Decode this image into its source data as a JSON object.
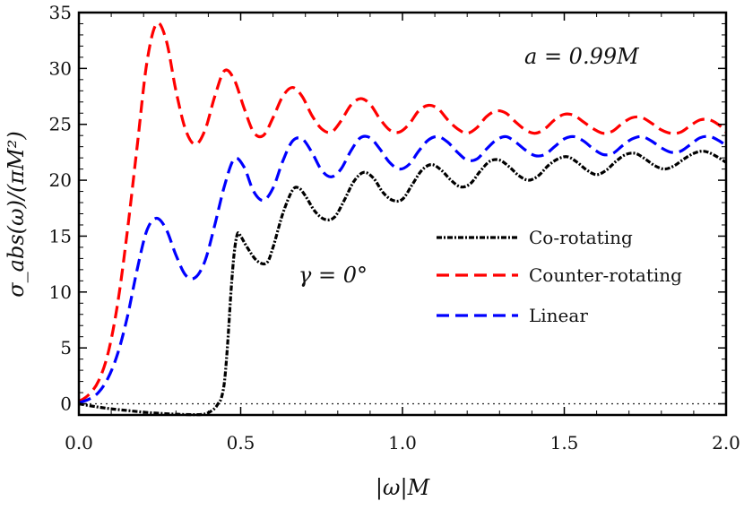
{
  "chart_data": {
    "type": "line",
    "xlabel": "|ω|M",
    "ylabel": "σ_abs(ω)/(πM²)",
    "xlim": [
      0,
      2.0
    ],
    "ylim": [
      -1,
      35
    ],
    "xticks": [
      "0.0",
      "0.5",
      "1.0",
      "1.5",
      "2.0"
    ],
    "yticks": [
      "0",
      "5",
      "10",
      "15",
      "20",
      "25",
      "30",
      "35"
    ],
    "annotations": [
      "a = 0.99M",
      "γ = 0°"
    ],
    "legend_position": "center-right",
    "zero_line": "dotted",
    "series": [
      {
        "name": "Co-rotating",
        "color": "#000000",
        "style": "dot-dash",
        "x": [
          0.0,
          0.05,
          0.1,
          0.15,
          0.2,
          0.25,
          0.3,
          0.35,
          0.38,
          0.4,
          0.42,
          0.43,
          0.44,
          0.45,
          0.46,
          0.47,
          0.48,
          0.49,
          0.5,
          0.52,
          0.55,
          0.58,
          0.6,
          0.63,
          0.66,
          0.68,
          0.7,
          0.73,
          0.76,
          0.79,
          0.82,
          0.85,
          0.88,
          0.91,
          0.94,
          0.97,
          1.0,
          1.03,
          1.06,
          1.09,
          1.12,
          1.15,
          1.18,
          1.21,
          1.24,
          1.27,
          1.3,
          1.33,
          1.36,
          1.39,
          1.42,
          1.45,
          1.48,
          1.51,
          1.54,
          1.57,
          1.6,
          1.63,
          1.66,
          1.69,
          1.72,
          1.75,
          1.78,
          1.81,
          1.84,
          1.87,
          1.9,
          1.93,
          1.96,
          2.0
        ],
        "y": [
          0.0,
          -0.25,
          -0.45,
          -0.6,
          -0.75,
          -0.85,
          -0.93,
          -0.97,
          -0.95,
          -0.8,
          -0.4,
          0.0,
          0.5,
          2.0,
          5.5,
          10.0,
          13.5,
          15.2,
          15.0,
          14.0,
          12.8,
          12.6,
          14.0,
          17.0,
          19.1,
          19.3,
          18.6,
          17.2,
          16.5,
          16.7,
          18.2,
          19.9,
          20.7,
          20.2,
          18.9,
          18.2,
          18.3,
          19.6,
          20.9,
          21.4,
          20.9,
          20.0,
          19.4,
          19.7,
          20.8,
          21.7,
          21.8,
          21.2,
          20.4,
          20.0,
          20.4,
          21.3,
          21.9,
          22.1,
          21.6,
          20.9,
          20.5,
          20.9,
          21.7,
          22.3,
          22.4,
          21.9,
          21.3,
          21.0,
          21.3,
          21.9,
          22.4,
          22.6,
          22.3,
          21.6
        ]
      },
      {
        "name": "Counter-rotating",
        "color": "#ff0000",
        "style": "dashed",
        "x": [
          0.0,
          0.03,
          0.06,
          0.09,
          0.12,
          0.15,
          0.18,
          0.21,
          0.24,
          0.27,
          0.3,
          0.33,
          0.36,
          0.39,
          0.42,
          0.45,
          0.48,
          0.51,
          0.54,
          0.57,
          0.6,
          0.63,
          0.66,
          0.69,
          0.72,
          0.75,
          0.78,
          0.81,
          0.84,
          0.87,
          0.9,
          0.93,
          0.96,
          0.99,
          1.02,
          1.05,
          1.08,
          1.11,
          1.14,
          1.17,
          1.2,
          1.23,
          1.26,
          1.29,
          1.32,
          1.35,
          1.38,
          1.41,
          1.44,
          1.47,
          1.5,
          1.53,
          1.56,
          1.59,
          1.62,
          1.65,
          1.68,
          1.71,
          1.74,
          1.77,
          1.8,
          1.83,
          1.86,
          1.89,
          1.92,
          1.95,
          1.98,
          2.0
        ],
        "y": [
          0.2,
          0.8,
          2.0,
          4.5,
          9.0,
          15.5,
          23.0,
          30.5,
          34.0,
          32.5,
          28.0,
          24.5,
          23.2,
          24.5,
          27.5,
          29.8,
          29.0,
          26.5,
          24.3,
          24.0,
          25.6,
          27.5,
          28.3,
          27.5,
          25.8,
          24.6,
          24.3,
          25.3,
          26.7,
          27.3,
          26.8,
          25.5,
          24.5,
          24.3,
          25.0,
          26.2,
          26.7,
          26.4,
          25.4,
          24.6,
          24.2,
          24.7,
          25.7,
          26.2,
          26.0,
          25.2,
          24.5,
          24.2,
          24.6,
          25.4,
          25.9,
          25.8,
          25.2,
          24.6,
          24.2,
          24.4,
          25.1,
          25.6,
          25.6,
          25.1,
          24.5,
          24.2,
          24.3,
          24.9,
          25.4,
          25.4,
          24.9,
          24.3
        ]
      },
      {
        "name": "Linear",
        "color": "#0000ff",
        "style": "dashed",
        "x": [
          0.0,
          0.03,
          0.06,
          0.09,
          0.12,
          0.15,
          0.18,
          0.21,
          0.24,
          0.27,
          0.3,
          0.33,
          0.36,
          0.39,
          0.42,
          0.45,
          0.48,
          0.51,
          0.54,
          0.57,
          0.6,
          0.63,
          0.66,
          0.69,
          0.72,
          0.75,
          0.78,
          0.81,
          0.84,
          0.87,
          0.9,
          0.93,
          0.96,
          0.99,
          1.02,
          1.05,
          1.08,
          1.11,
          1.14,
          1.17,
          1.2,
          1.23,
          1.26,
          1.29,
          1.32,
          1.35,
          1.38,
          1.41,
          1.44,
          1.47,
          1.5,
          1.53,
          1.56,
          1.59,
          1.62,
          1.65,
          1.68,
          1.71,
          1.74,
          1.77,
          1.8,
          1.83,
          1.86,
          1.89,
          1.92,
          1.95,
          1.98,
          2.0
        ],
        "y": [
          0.1,
          0.4,
          1.0,
          2.3,
          4.5,
          7.8,
          12.0,
          15.5,
          16.6,
          15.6,
          13.3,
          11.5,
          11.3,
          12.8,
          16.0,
          19.5,
          21.9,
          21.2,
          19.0,
          18.2,
          19.3,
          21.7,
          23.5,
          23.7,
          22.5,
          20.9,
          20.3,
          21.0,
          22.6,
          23.8,
          23.8,
          22.8,
          21.6,
          21.0,
          21.4,
          22.6,
          23.6,
          23.9,
          23.4,
          22.5,
          21.8,
          21.9,
          22.8,
          23.6,
          23.9,
          23.4,
          22.7,
          22.2,
          22.3,
          23.0,
          23.7,
          23.9,
          23.5,
          22.8,
          22.3,
          22.4,
          23.1,
          23.7,
          23.9,
          23.5,
          22.9,
          22.5,
          22.6,
          23.2,
          23.8,
          23.9,
          23.5,
          23.1
        ]
      }
    ]
  }
}
